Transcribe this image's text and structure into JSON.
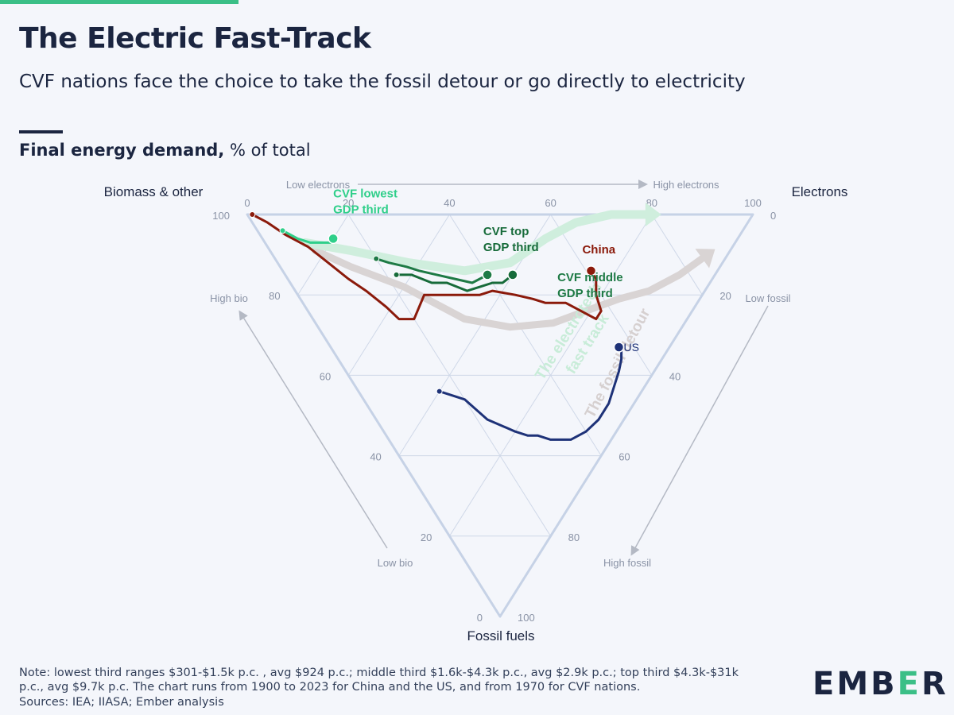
{
  "header": {
    "title": "The Electric Fast-Track",
    "subtitle": "CVF nations face the choice to take the fossil detour or go directly to electricity",
    "chart_heading_bold": "Final energy demand,",
    "chart_heading_rest": " % of total"
  },
  "footer": {
    "note": "Note: lowest third ranges $301-$1.5k p.c. , avg $924 p.c.; middle third $1.6k-$4.3k p.c., avg $2.9k p.c.; top third $4.3k-$31k p.c., avg $9.7k p.c. The chart runs from 1900 to 2023 for China and the US, and from 1970 for CVF nations.",
    "sources": "Sources: IEA; IIASA; Ember analysis",
    "logo_parts": [
      "EMB",
      "E",
      "R"
    ]
  },
  "colors": {
    "china": "#8b1a0b",
    "us": "#1e3278",
    "cvf_lowest": "#2fcf8a",
    "cvf_middle": "#1e7a45",
    "cvf_top": "#176b3a",
    "electrotech_arrow": "#cfeedd",
    "fossil_arrow": "#d9d4d4",
    "grid": "#cfd8e8",
    "axis_arrow": "#b4b9c4"
  },
  "chart_data": {
    "type": "ternary",
    "title": "Final energy demand, % of total",
    "corners": {
      "top_left": "Biomass & other",
      "top_right": "Electrons",
      "bottom": "Fossil fuels"
    },
    "axes": {
      "electrons": {
        "ticks": [
          "0",
          "20",
          "40",
          "60",
          "80",
          "100"
        ],
        "direction_low": "Low electrons",
        "direction_high": "High electrons"
      },
      "biomass": {
        "ticks": [
          "100",
          "80",
          "60",
          "40",
          "20",
          "0"
        ],
        "direction_high": "High bio",
        "direction_low": "Low bio"
      },
      "fossil": {
        "ticks": [
          "0",
          "20",
          "40",
          "60",
          "80",
          "100"
        ],
        "direction_low": "Low fossil",
        "direction_high": "High fossil"
      }
    },
    "annotations": {
      "electrotech": [
        "The electrotech",
        "fast track"
      ],
      "fossil": "The fossil detour"
    },
    "series": [
      {
        "key": "china",
        "name": "China",
        "label_lines": [
          "China"
        ],
        "points": [
          [
            1,
            100,
            0
          ],
          [
            3,
            95,
            2
          ],
          [
            5,
            90,
            5
          ],
          [
            8,
            84,
            8
          ],
          [
            10,
            78,
            12
          ],
          [
            12,
            72,
            16
          ],
          [
            14,
            67,
            19
          ],
          [
            16,
            61,
            23
          ],
          [
            17,
            57,
            26
          ],
          [
            20,
            54,
            26
          ],
          [
            25,
            55,
            20
          ],
          [
            30,
            50,
            20
          ],
          [
            34,
            46,
            20
          ],
          [
            36,
            44,
            20
          ],
          [
            39,
            42,
            19
          ],
          [
            43,
            37,
            20
          ],
          [
            46,
            33,
            21
          ],
          [
            48,
            30,
            22
          ],
          [
            50,
            28,
            22
          ],
          [
            52,
            26,
            22
          ],
          [
            54,
            22,
            24
          ],
          [
            56,
            18,
            26
          ],
          [
            58,
            18,
            24
          ],
          [
            59,
            21,
            20
          ],
          [
            61,
            23,
            16
          ],
          [
            61,
            25,
            14
          ]
        ]
      },
      {
        "key": "us",
        "name": "US",
        "label_lines": [
          "US"
        ],
        "points": [
          [
            16,
            40,
            44
          ],
          [
            20,
            34,
            46
          ],
          [
            22,
            27,
            51
          ],
          [
            26,
            20,
            54
          ],
          [
            28,
            17,
            55
          ],
          [
            30,
            15,
            55
          ],
          [
            32,
            12,
            56
          ],
          [
            34,
            10,
            56
          ],
          [
            36,
            8,
            56
          ],
          [
            40,
            6,
            54
          ],
          [
            44,
            5,
            51
          ],
          [
            48,
            5,
            47
          ],
          [
            51,
            6,
            43
          ],
          [
            54,
            7,
            39
          ],
          [
            56,
            8,
            36
          ],
          [
            57,
            9,
            34
          ],
          [
            57,
            10,
            33
          ]
        ]
      },
      {
        "key": "cvf_lowest",
        "name": "CVF lowest GDP third",
        "label_lines": [
          "CVF lowest",
          "GDP third"
        ],
        "points": [
          [
            5,
            91,
            4
          ],
          [
            7,
            87,
            6
          ],
          [
            9,
            84,
            7
          ],
          [
            11,
            82,
            7
          ],
          [
            13,
            80,
            7
          ],
          [
            14,
            80,
            6
          ]
        ]
      },
      {
        "key": "cvf_middle",
        "name": "CVF middle GDP third",
        "label_lines": [
          "CVF middle",
          "GDP third"
        ],
        "points": [
          [
            20,
            69,
            11
          ],
          [
            22,
            66,
            12
          ],
          [
            25,
            62,
            13
          ],
          [
            27,
            59,
            14
          ],
          [
            30,
            55,
            15
          ],
          [
            33,
            51,
            16
          ],
          [
            36,
            47,
            17
          ],
          [
            38,
            46,
            16
          ],
          [
            40,
            45,
            15
          ]
        ]
      },
      {
        "key": "cvf_top",
        "name": "CVF top GDP third",
        "label_lines": [
          "CVF top",
          "GDP third"
        ],
        "points": [
          [
            22,
            63,
            15
          ],
          [
            25,
            60,
            15
          ],
          [
            28,
            55,
            17
          ],
          [
            31,
            52,
            17
          ],
          [
            34,
            47,
            19
          ],
          [
            37,
            45,
            18
          ],
          [
            40,
            43,
            17
          ],
          [
            42,
            41,
            17
          ],
          [
            45,
            40,
            15
          ]
        ]
      }
    ],
    "paths": {
      "electrotech": [
        [
          8,
          85,
          7
        ],
        [
          16,
          75,
          9
        ],
        [
          26,
          62,
          12
        ],
        [
          36,
          50,
          14
        ],
        [
          46,
          42,
          12
        ],
        [
          56,
          38,
          6
        ],
        [
          64,
          34,
          2
        ],
        [
          72,
          28,
          0
        ],
        [
          80,
          20,
          0
        ]
      ],
      "fossil": [
        [
          9,
          82,
          9
        ],
        [
          14,
          73,
          13
        ],
        [
          22,
          60,
          18
        ],
        [
          30,
          44,
          26
        ],
        [
          38,
          34,
          28
        ],
        [
          47,
          26,
          27
        ],
        [
          55,
          21,
          24
        ],
        [
          63,
          16,
          21
        ],
        [
          70,
          11,
          19
        ],
        [
          78,
          7,
          15
        ],
        [
          86,
          4,
          10
        ]
      ]
    }
  }
}
